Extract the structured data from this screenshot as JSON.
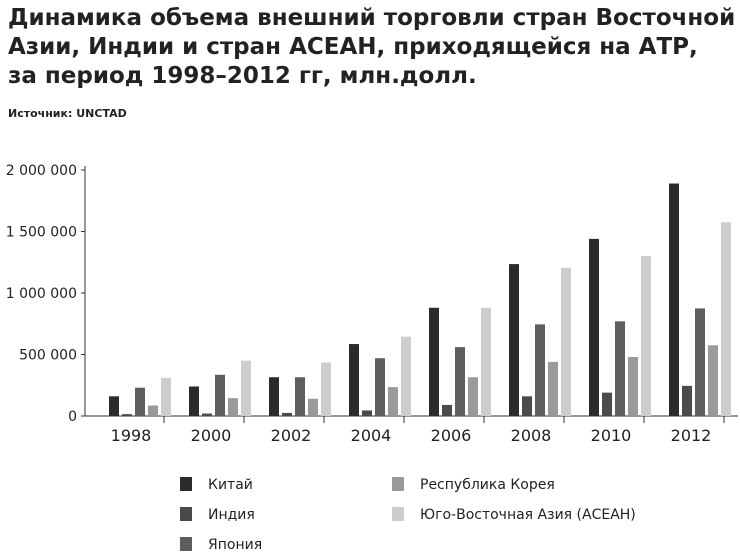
{
  "title_lines": [
    "Динамика объема внешний торговли стран Восточной",
    "Азии, Индии и стран АСЕАН, приходящейся на АТР,",
    "за период 1998–2012 гг, млн.долл."
  ],
  "source": "Источник: UNCTAD",
  "chart_data": {
    "type": "bar",
    "title": "Динамика объема внешний торговли стран Восточной Азии, Индии и стран АСЕАН, приходящейся на АТР, за период 1998–2012 гг, млн.долл.",
    "categories": [
      "1998",
      "2000",
      "2002",
      "2004",
      "2006",
      "2008",
      "2010",
      "2012"
    ],
    "ylim": [
      0,
      2000000
    ],
    "yticks": [
      0,
      500000,
      1000000,
      1500000,
      2000000
    ],
    "ytick_labels": [
      "0",
      "500 000",
      "1 000 000",
      "1 500 000",
      "2 000 000"
    ],
    "grid": false,
    "legend_position": "bottom",
    "series": [
      {
        "name": "Китай",
        "color": "#2b2b2b",
        "values": [
          160000,
          240000,
          315000,
          585000,
          880000,
          1235000,
          1440000,
          1890000
        ]
      },
      {
        "name": "Индия",
        "color": "#4a4a4a",
        "values": [
          15000,
          20000,
          25000,
          45000,
          90000,
          160000,
          190000,
          245000
        ]
      },
      {
        "name": "Япония",
        "color": "#5e5e5e",
        "values": [
          230000,
          335000,
          315000,
          470000,
          560000,
          745000,
          770000,
          875000
        ]
      },
      {
        "name": "Республика Корея",
        "color": "#9a9a9a",
        "values": [
          85000,
          145000,
          140000,
          235000,
          315000,
          440000,
          480000,
          575000
        ]
      },
      {
        "name": "Юго-Восточная Азия (АСЕАН)",
        "color": "#cdcdcd",
        "values": [
          310000,
          450000,
          435000,
          645000,
          880000,
          1205000,
          1300000,
          1575000
        ]
      }
    ]
  }
}
